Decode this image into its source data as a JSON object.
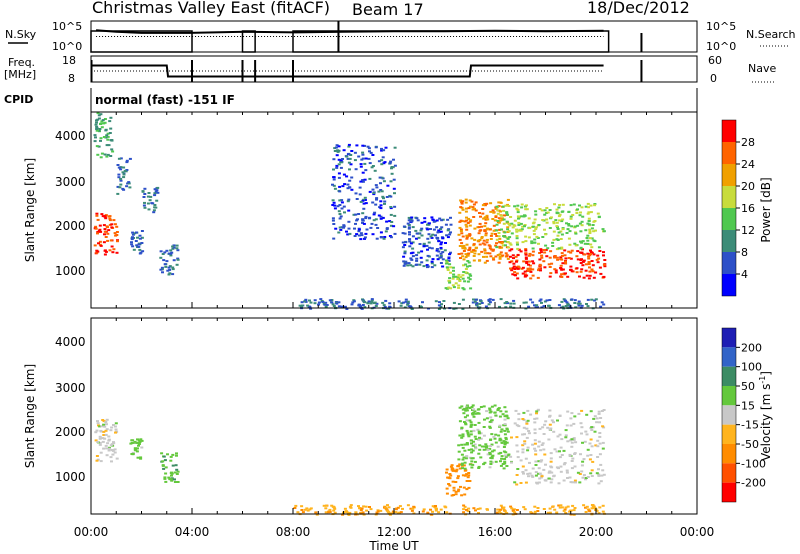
{
  "header": {
    "station": "Christmas Valley East (fitACF)",
    "beam": "Beam 17",
    "date": "18/Dec/2012"
  },
  "sky_panel": {
    "left_label": "N.Sky",
    "right_label": "N.Search",
    "left_ticks": [
      "10^5",
      "10^0"
    ],
    "right_ticks": [
      "10^5",
      "10^0"
    ]
  },
  "freq_panel": {
    "left_label_1": "Freq.",
    "left_label_2": "[MHz]",
    "right_label": "Nave",
    "left_ticks": [
      "18",
      "8"
    ],
    "right_ticks": [
      "60",
      "0"
    ]
  },
  "cpid": {
    "label": "CPID",
    "mode": "normal (fast) -151 IF"
  },
  "axes": {
    "ylabel": "Slant Range [km]",
    "xlabel": "Time UT",
    "x_ticks": [
      "00:00",
      "04:00",
      "08:00",
      "12:00",
      "16:00",
      "20:00",
      "00:00"
    ],
    "y_ticks": [
      "1000",
      "2000",
      "3000",
      "4000"
    ]
  },
  "power_scale": {
    "title": "Power [dB]",
    "ticks": [
      "4",
      "8",
      "12",
      "16",
      "20",
      "24",
      "28"
    ],
    "colors": [
      "#0000ff",
      "#2d50c8",
      "#3c8c78",
      "#50c850",
      "#c8dc3c",
      "#f0a000",
      "#ff6400",
      "#ff0000"
    ]
  },
  "velocity_scale": {
    "title": "Velocity [m s",
    "title_exp": "-1",
    "title_end": "]",
    "ticks": [
      "200",
      "100",
      "50",
      "15",
      "-15",
      "-50",
      "-100",
      "-200"
    ],
    "colors": [
      "#1e1eb4",
      "#3264c8",
      "#3c8c64",
      "#64c83c",
      "#c8c8c8",
      "#ffb41e",
      "#ff8c00",
      "#ff5000",
      "#ff0000"
    ]
  },
  "chart_data": [
    {
      "type": "line",
      "title": "N.Sky / N.Search",
      "x_range_hours": [
        0,
        24
      ],
      "operating_intervals_ut": [
        [
          "00:00",
          "04:00"
        ],
        [
          "06:00",
          "06:30"
        ],
        [
          "08:00",
          "20:30"
        ]
      ],
      "series": [
        {
          "name": "N.Sky",
          "x": [
            0.2,
            1,
            2,
            3,
            3.9,
            6.1,
            8.1,
            10,
            12,
            14,
            16,
            18,
            20.3
          ],
          "y_log10": [
            3.8,
            3.5,
            3.3,
            3.3,
            3.3,
            3.5,
            3.4,
            3.5,
            3.6,
            3.6,
            3.7,
            3.6,
            3.7
          ]
        },
        {
          "name": "N.Search",
          "x": [
            0.2,
            4,
            8,
            20.3
          ],
          "y_log10": [
            2.6,
            2.6,
            2.6,
            2.6
          ]
        }
      ]
    },
    {
      "type": "line",
      "title": "Freq. / Nave",
      "series": [
        {
          "name": "Freq. [MHz]",
          "x": [
            0,
            3,
            3.05,
            4,
            6,
            6.5,
            8,
            15,
            15.05,
            20.3
          ],
          "y": [
            15.5,
            15.5,
            10.5,
            10.5,
            10.5,
            10.5,
            10.5,
            10.5,
            15.5,
            15.5
          ]
        },
        {
          "name": "Nave",
          "x": [
            0,
            20.3
          ],
          "y": [
            30,
            30
          ]
        }
      ]
    },
    {
      "type": "heatmap",
      "title": "Power [dB]",
      "x_label": "Time UT",
      "y_label": "Slant Range [km]",
      "x_range_hours": [
        0,
        24
      ],
      "y_range_km": [
        180,
        4500
      ],
      "regions": [
        {
          "t0": 0.1,
          "t1": 1.0,
          "r0": 1350,
          "r1": 2300,
          "power_db": 28
        },
        {
          "t0": 0.1,
          "t1": 0.8,
          "r0": 3500,
          "r1": 4500,
          "power_db": 12
        },
        {
          "t0": 1.0,
          "t1": 1.5,
          "r0": 2700,
          "r1": 3500,
          "power_db": 8
        },
        {
          "t0": 1.5,
          "t1": 2.0,
          "r0": 1400,
          "r1": 1900,
          "power_db": 8
        },
        {
          "t0": 2.0,
          "t1": 2.6,
          "r0": 2300,
          "r1": 2900,
          "power_db": 8
        },
        {
          "t0": 2.7,
          "t1": 3.4,
          "r0": 900,
          "r1": 1600,
          "power_db": 8
        },
        {
          "t0": 9.5,
          "t1": 12.0,
          "r0": 1700,
          "r1": 3800,
          "power_db": 6
        },
        {
          "t0": 12.3,
          "t1": 14.2,
          "r0": 1100,
          "r1": 2200,
          "power_db": 6
        },
        {
          "t0": 14.0,
          "t1": 15.0,
          "r0": 600,
          "r1": 1300,
          "power_db": 16
        },
        {
          "t0": 14.5,
          "t1": 16.5,
          "r0": 1200,
          "r1": 2600,
          "power_db": 24
        },
        {
          "t0": 16.5,
          "t1": 20.3,
          "r0": 850,
          "r1": 1500,
          "power_db": 28
        },
        {
          "t0": 16.0,
          "t1": 20.3,
          "r0": 1500,
          "r1": 2500,
          "power_db": 16
        },
        {
          "t0": 8.0,
          "t1": 20.3,
          "r0": 180,
          "r1": 400,
          "power_db": 8
        }
      ]
    },
    {
      "type": "heatmap",
      "title": "Velocity [m s-1]",
      "x_label": "Time UT",
      "y_label": "Slant Range [km]",
      "x_range_hours": [
        0,
        24
      ],
      "y_range_km": [
        180,
        4500
      ],
      "regions": [
        {
          "t0": 0.1,
          "t1": 1.0,
          "r0": 1350,
          "r1": 2300,
          "velocity": 0
        },
        {
          "t0": 1.5,
          "t1": 2.0,
          "r0": 1400,
          "r1": 1900,
          "velocity": 30
        },
        {
          "t0": 2.7,
          "t1": 3.4,
          "r0": 900,
          "r1": 1600,
          "velocity": 40
        },
        {
          "t0": 14.0,
          "t1": 15.0,
          "r0": 600,
          "r1": 1300,
          "velocity": -80
        },
        {
          "t0": 14.5,
          "t1": 16.5,
          "r0": 1200,
          "r1": 2600,
          "velocity": 30
        },
        {
          "t0": 16.5,
          "t1": 20.3,
          "r0": 850,
          "r1": 2500,
          "velocity": 0
        },
        {
          "t0": 8.0,
          "t1": 20.3,
          "r0": 180,
          "r1": 400,
          "velocity": -40
        }
      ]
    }
  ]
}
